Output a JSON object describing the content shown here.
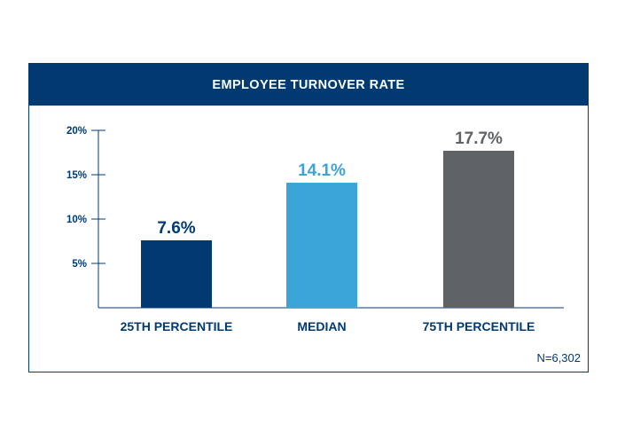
{
  "header": {
    "title": "EMPLOYEE TURNOVER RATE"
  },
  "footer": {
    "n_label": "N=6,302"
  },
  "chart_data": {
    "type": "bar",
    "title": "EMPLOYEE TURNOVER RATE",
    "categories": [
      "25TH PERCENTILE",
      "MEDIAN",
      "75TH PERCENTILE"
    ],
    "values": [
      7.6,
      14.1,
      17.7
    ],
    "value_labels": [
      "7.6%",
      "14.1%",
      "17.7%"
    ],
    "bar_colors": [
      "#003a70",
      "#3ba4d8",
      "#5f6366"
    ],
    "label_colors": [
      "#003a70",
      "#3ba4d8",
      "#5f6366"
    ],
    "ylim": [
      0,
      20
    ],
    "yticks": [
      5,
      10,
      15,
      20
    ],
    "ytick_labels": [
      "5%",
      "10%",
      "15%",
      "20%"
    ],
    "xlabel": "",
    "ylabel": "",
    "grid": false,
    "legend": "none"
  }
}
